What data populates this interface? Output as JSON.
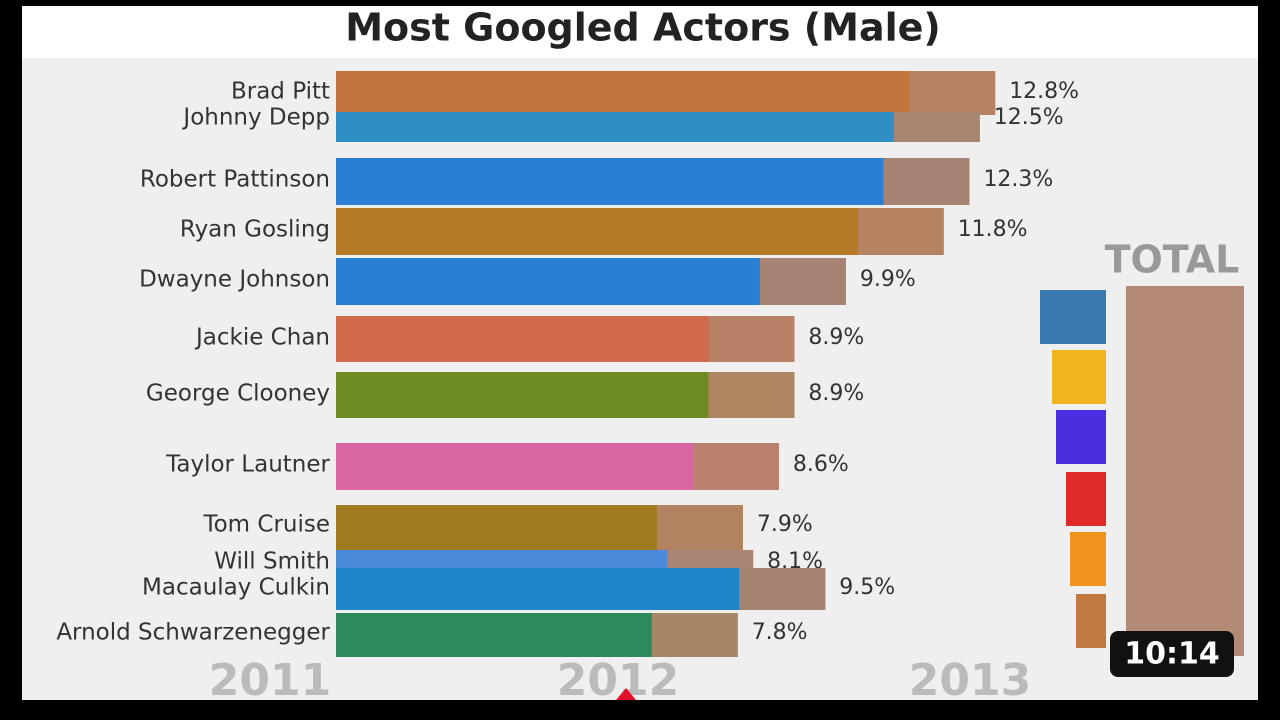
{
  "chart_data": {
    "type": "bar",
    "orientation": "horizontal",
    "title": "Most Googled Actors (Male)",
    "categories": [
      "Brad Pitt",
      "Johnny Depp",
      "Robert Pattinson",
      "Ryan Gosling",
      "Dwayne Johnson",
      "Jackie Chan",
      "George Clooney",
      "Taylor Lautner",
      "Tom Cruise",
      "Will Smith",
      "Macaulay Culkin",
      "Arnold Schwarzenegger"
    ],
    "values": [
      12.8,
      12.5,
      12.3,
      11.8,
      9.9,
      8.9,
      8.9,
      8.6,
      7.9,
      8.1,
      9.5,
      7.8
    ],
    "value_labels": [
      "12.8%",
      "12.5%",
      "12.3%",
      "11.8%",
      "9.9%",
      "8.9%",
      "8.9%",
      "8.6%",
      "7.9%",
      "8.1%",
      "9.5%",
      "7.8%"
    ],
    "colors": [
      "#c0733a",
      "#2f8fc4",
      "#2a7fd4",
      "#b57a25",
      "#2a7fd4",
      "#d2694a",
      "#6e8a22",
      "#d966a0",
      "#a07a1e",
      "#4a8ad8",
      "#1f86c9",
      "#2e8a5e"
    ],
    "timeline": [
      "2011",
      "2012",
      "2013"
    ],
    "total_label": "TOTAL"
  },
  "video": {
    "duration": "10:14"
  }
}
